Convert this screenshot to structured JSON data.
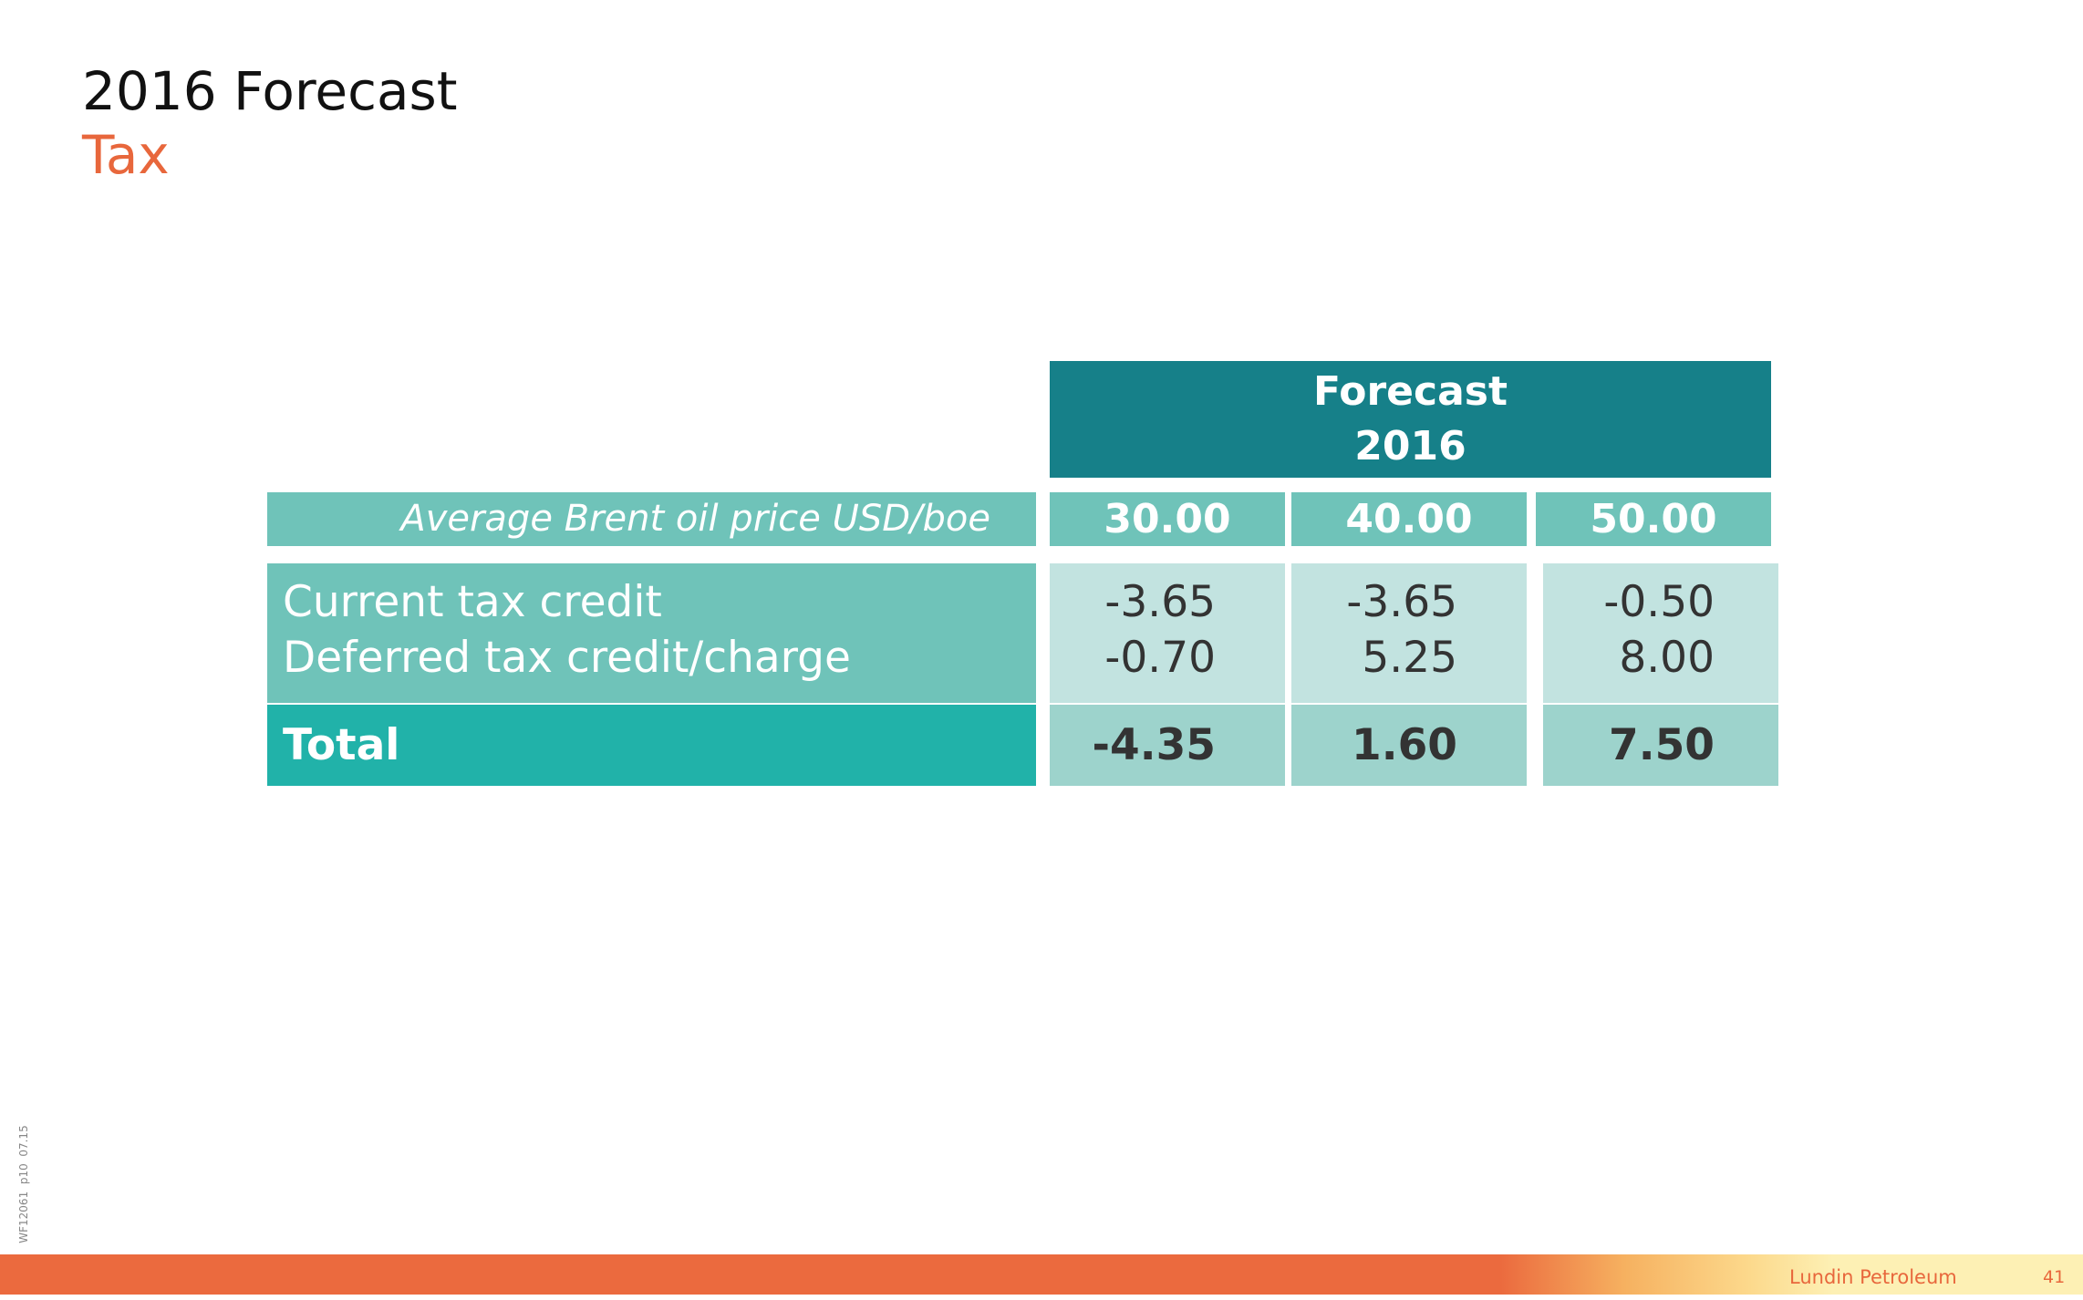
{
  "header": {
    "title": "2016 Forecast",
    "subtitle": "Tax"
  },
  "table": {
    "header": [
      "Forecast",
      "2016"
    ],
    "price_row": {
      "label": "Average Brent oil price USD/boe",
      "values": [
        "30.00",
        "40.00",
        "50.00"
      ]
    },
    "rows": [
      {
        "label": "Current tax credit",
        "values": [
          "-3.65",
          "-3.65",
          "-0.50"
        ]
      },
      {
        "label": "Deferred tax credit/charge",
        "values": [
          "-0.70",
          "5.25",
          "8.00"
        ]
      }
    ],
    "total": {
      "label": "Total",
      "values": [
        "-4.35",
        "1.60",
        "7.50"
      ]
    }
  },
  "footer": {
    "code": "WF12061  p10  07.15",
    "company": "Lundin Petroleum",
    "page": "41"
  }
}
